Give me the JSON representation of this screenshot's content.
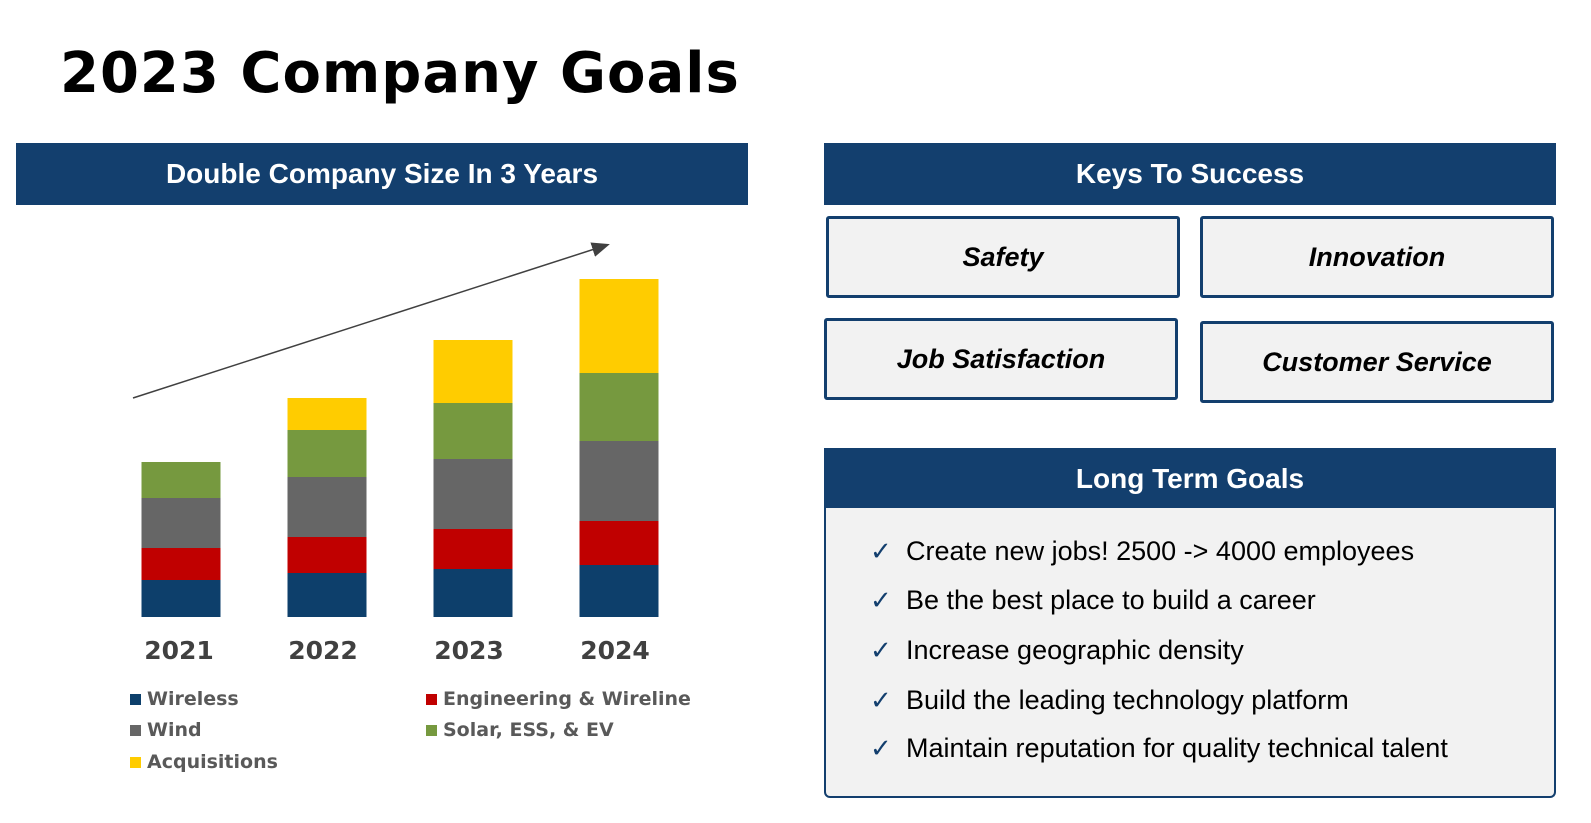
{
  "page": {
    "title": "2023 Company Goals"
  },
  "left_panel": {
    "banner": "Double Company Size In 3 Years"
  },
  "keys": {
    "banner": "Keys To Success",
    "items": [
      "Safety",
      "Innovation",
      "Job Satisfaction",
      "Customer Service"
    ]
  },
  "goals": {
    "banner": "Long Term Goals",
    "check_icon": "✓",
    "items": [
      "Create new jobs!  2500 -> 4000 employees",
      "Be the best place to build a career",
      "Increase geographic density",
      "Build the leading technology platform",
      "Maintain reputation for quality technical talent"
    ]
  },
  "colors": {
    "banner": "#133f6e",
    "Wireless": "#0d3f6b",
    "Engineering & Wireline": "#c00000",
    "Wind": "#666666",
    "Solar, ESS, & EV": "#76993f",
    "Acquisitions": "#ffcc00"
  },
  "chart_data": {
    "type": "bar",
    "stacked": true,
    "title": "Double Company Size In 3 Years",
    "categories": [
      "2021",
      "2022",
      "2023",
      "2024"
    ],
    "series": [
      {
        "name": "Wireless",
        "values": [
          37,
          44,
          48,
          52
        ]
      },
      {
        "name": "Engineering & Wireline",
        "values": [
          32,
          36,
          40,
          44
        ]
      },
      {
        "name": "Wind",
        "values": [
          50,
          60,
          70,
          80
        ]
      },
      {
        "name": "Solar, ESS, & EV",
        "values": [
          36,
          47,
          56,
          68
        ]
      },
      {
        "name": "Acquisitions",
        "values": [
          0,
          32,
          63,
          94
        ]
      }
    ],
    "ylim": [
      0,
      338
    ],
    "xlabel": "",
    "ylabel": "",
    "annotations": [
      "upward trend arrow"
    ],
    "legend_position": "bottom"
  }
}
